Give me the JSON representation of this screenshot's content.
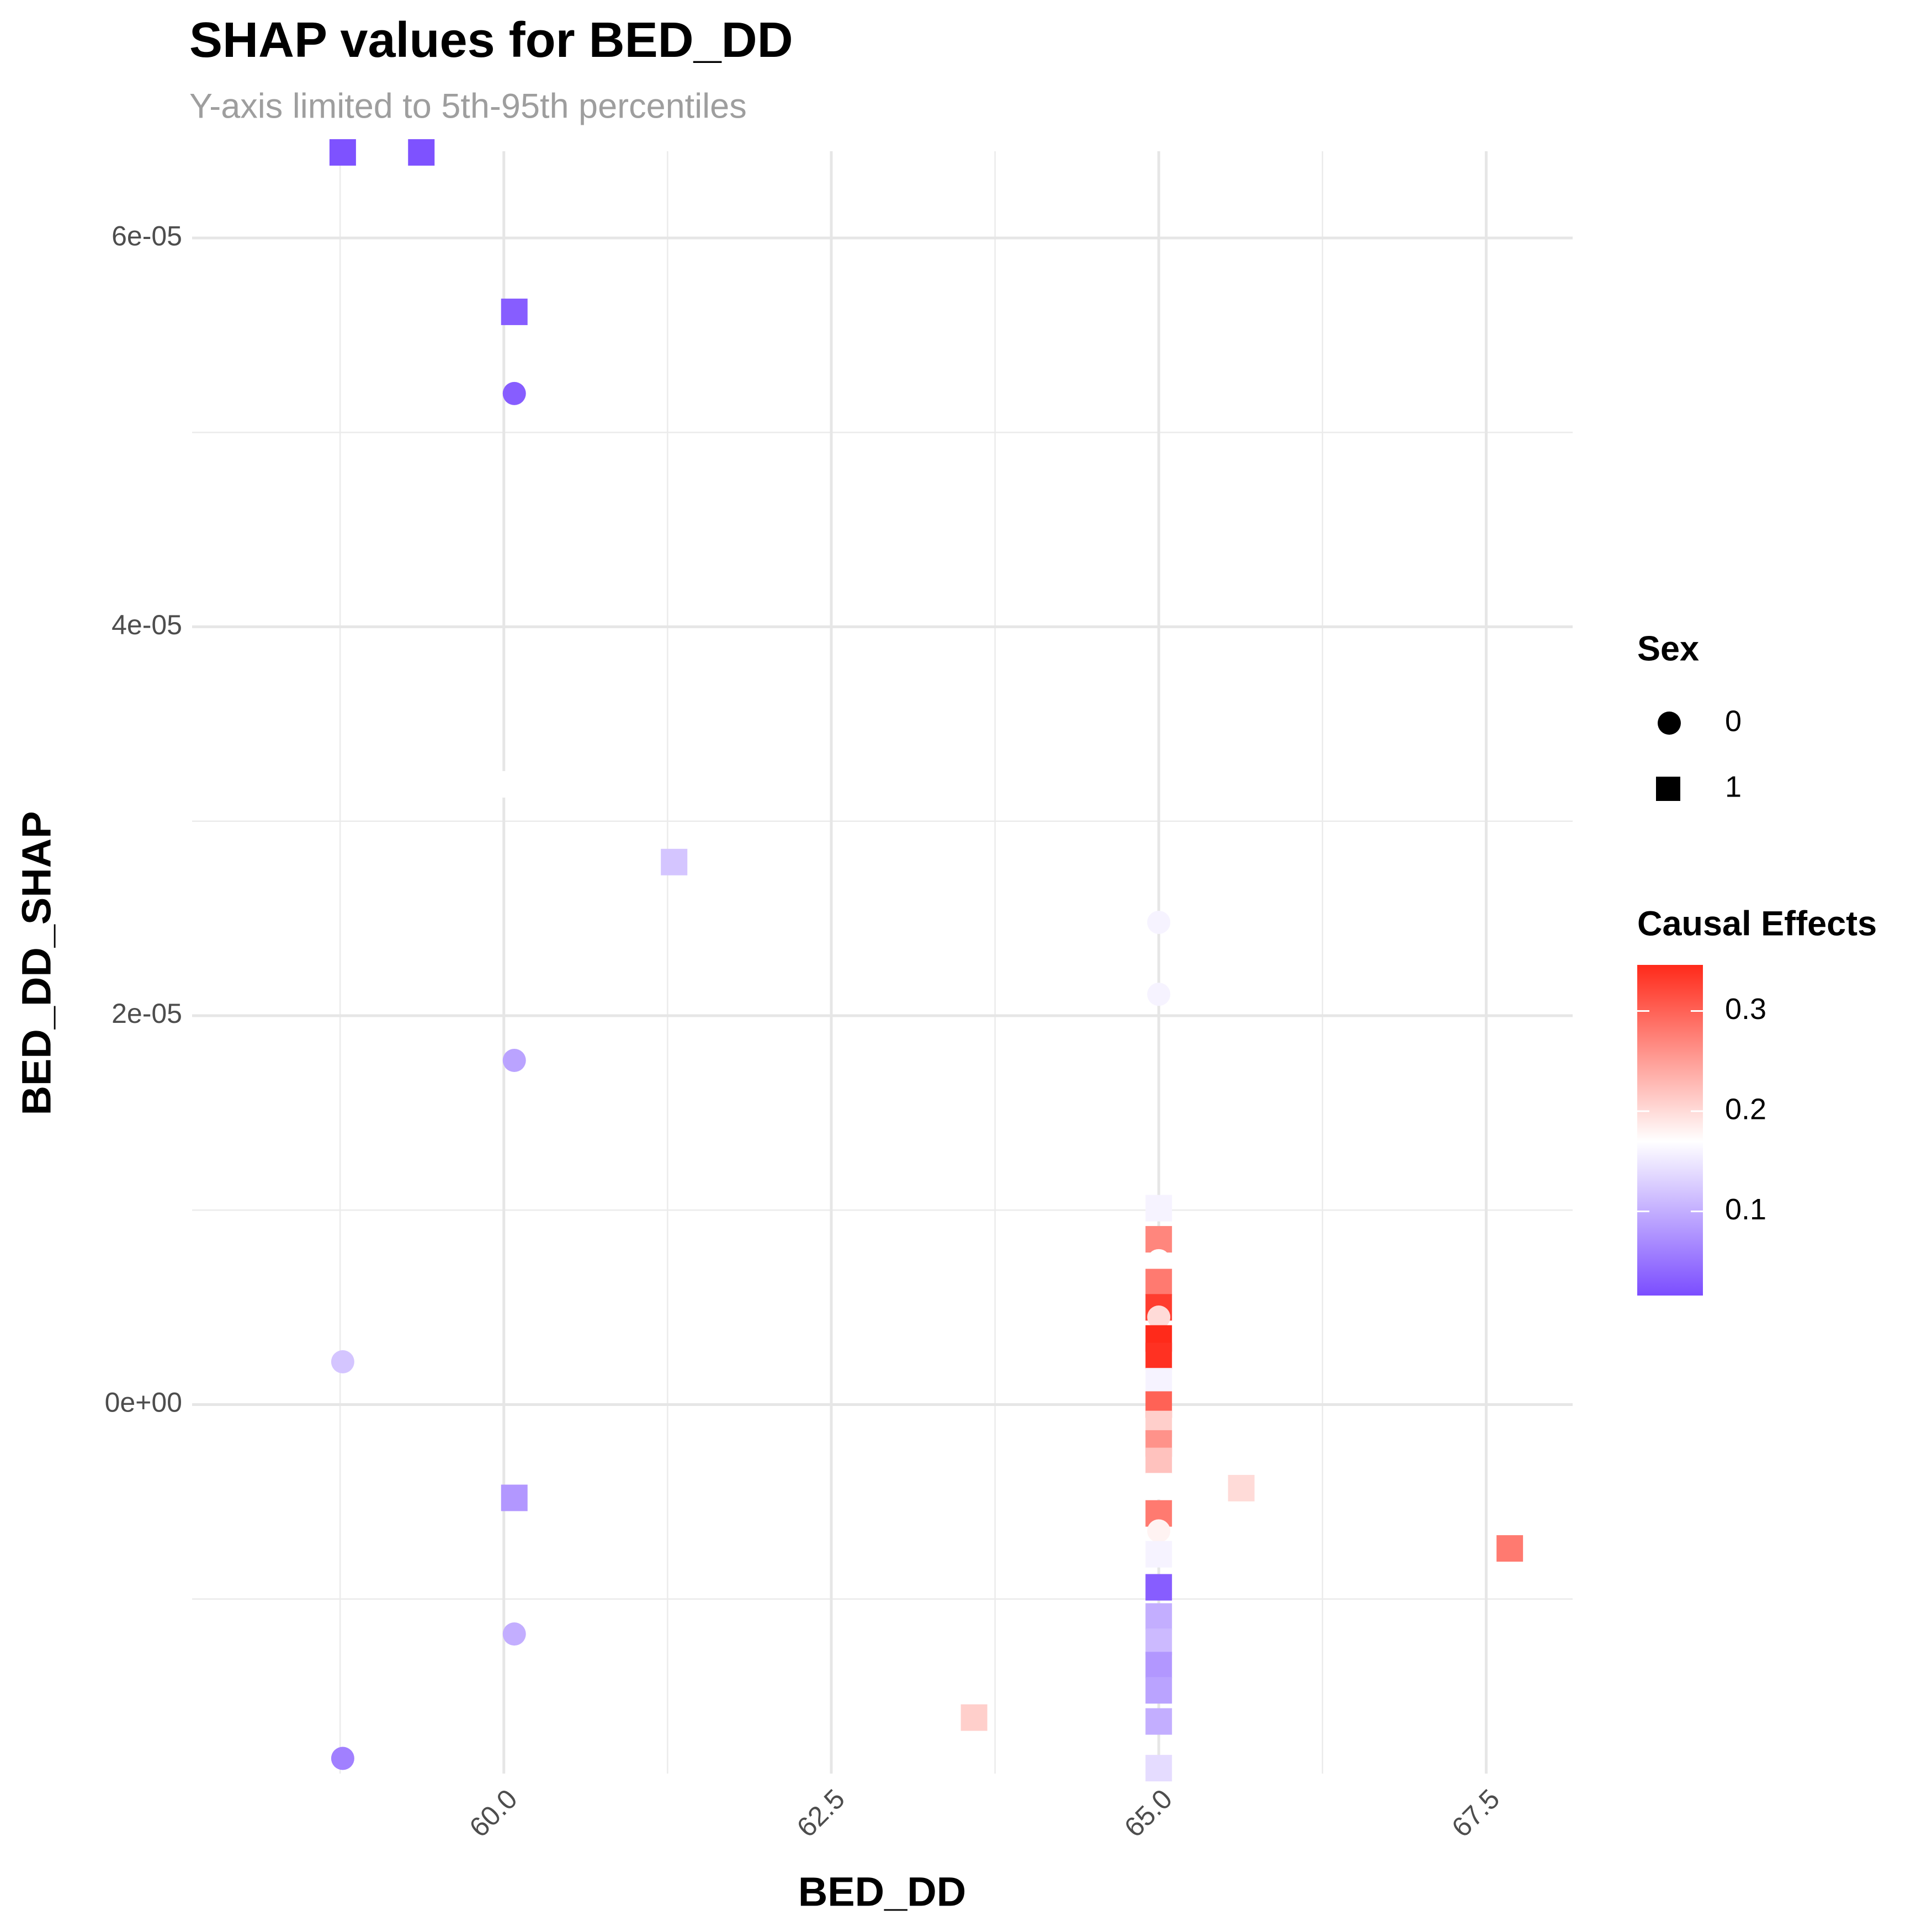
{
  "chart_data": {
    "type": "scatter",
    "title": "SHAP values for BED_DD",
    "subtitle": "Y-axis limited to 5th-95th percentiles",
    "x_label": "BED_DD",
    "y_label": "BED_DD_SHAP",
    "xlim": [
      57.62,
      68.16
    ],
    "ylim": [
      -1.898e-05,
      6.446e-05
    ],
    "xticks": [
      {
        "value": 60,
        "label": "60.0"
      },
      62.5,
      {
        "value": 65,
        "label": "65.0"
      },
      67.5
    ],
    "yticks": [
      {
        "value": 0,
        "label": "0e+00"
      },
      {
        "value": 2e-05,
        "label": "2e-05"
      },
      {
        "value": 4e-05,
        "label": "4e-05"
      },
      {
        "value": 6e-05,
        "label": "6e-05"
      }
    ],
    "grid": true,
    "x": [
      58.77,
      59.37,
      60.08,
      60.08,
      60.08,
      61.3,
      65.0,
      65.0,
      60.08,
      58.77,
      60.08,
      65.63,
      67.68,
      60.08,
      63.59,
      58.77,
      65.0,
      65.0,
      65.0,
      65.0,
      65.0,
      65.0,
      65.0,
      65.0,
      65.0,
      65.0,
      65.0,
      65.0,
      65.0,
      65.0,
      65.0,
      65.0,
      65.0,
      65.0,
      65.0,
      65.0,
      65.0,
      65.0,
      65.0,
      65.0
    ],
    "values": [
      6.44e-05,
      6.44e-05,
      5.62e-05,
      5.2e-05,
      3.19e-05,
      2.79e-05,
      2.48e-05,
      2.11e-05,
      1.77e-05,
      2.2e-06,
      -4.8e-06,
      -4.3e-06,
      -7.4e-06,
      -1.18e-05,
      -1.61e-05,
      -1.82e-05,
      1.01e-05,
      8.5e-06,
      7.4e-06,
      6.3e-06,
      5e-06,
      4.5e-06,
      3.4e-06,
      2.5e-06,
      1.2e-06,
      0,
      -1e-06,
      -2e-06,
      -2.9e-06,
      -4.2e-06,
      -5.6e-06,
      -6.5e-06,
      -7.7e-06,
      -9.4e-06,
      -1.09e-05,
      -1.22e-05,
      -1.34e-05,
      -1.47e-05,
      -1.63e-05,
      -1.87e-05
    ],
    "sex": [
      1,
      1,
      1,
      0,
      1,
      1,
      0,
      0,
      0,
      0,
      1,
      1,
      1,
      0,
      1,
      0,
      1,
      1,
      0,
      1,
      1,
      0,
      1,
      1,
      1,
      1,
      1,
      1,
      1,
      1,
      1,
      0,
      1,
      1,
      1,
      1,
      1,
      1,
      1,
      1
    ],
    "effect": [
      0.02,
      0.02,
      0.03,
      0.03,
      0.17,
      0.12,
      0.16,
      0.16,
      0.09,
      0.12,
      0.08,
      0.2,
      0.28,
      0.1,
      0.21,
      0.06,
      0.16,
      0.27,
      0.17,
      0.28,
      0.33,
      0.2,
      0.35,
      0.34,
      0.16,
      0.3,
      0.21,
      0.26,
      0.22,
      0.17,
      0.28,
      0.18,
      0.16,
      0.03,
      0.1,
      0.11,
      0.08,
      0.09,
      0.1,
      0.14
    ],
    "shape_legend": {
      "title": "Sex",
      "labels": [
        "0",
        "1"
      ]
    },
    "colorbar": {
      "title": "Causal Effects",
      "min": 0.016,
      "max": 0.346,
      "mid": 0.17,
      "low_color": "#7b4dff",
      "mid_color": "#ffffff",
      "high_color": "#ff2a1a",
      "ticks": [
        0.1,
        0.2,
        0.3
      ]
    }
  }
}
